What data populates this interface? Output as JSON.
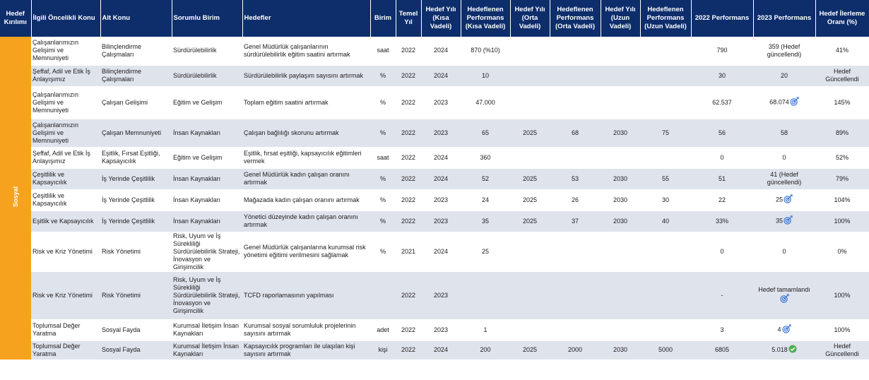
{
  "headers": {
    "kirilim": "Hedef Kırılımı",
    "oncelik": "İlgili Öncelikli Konu",
    "altkonu": "Alt Konu",
    "birim_sorumlu": "Sorumlu Birim",
    "hedefler": "Hedefler",
    "birim": "Birim",
    "temel": "Temel Yıl",
    "hy_kisa": "Hedef Yılı (Kısa Vadeli)",
    "hp_kisa": "Hedeflenen Performans (Kısa Vadeli)",
    "hy_orta": "Hedef Yılı (Orta Vadeli)",
    "hp_orta": "Hedeflenen Performans (Orta Vadeli)",
    "hy_uzun": "Hedef Yılı (Uzun Vadeli)",
    "hp_uzun": "Hedeflenen Performans (Uzun Vadeli)",
    "perf2022": "2022 Performans",
    "perf2023": "2023 Performans",
    "ilerleme": "Hedef İlerleme Oranı (%)"
  },
  "category": "Sosyal",
  "icon_colors": {
    "target": "#2f6fd6",
    "check": "#4caf50"
  },
  "rows": [
    {
      "oncelik": "Çalışanlarımızın Gelişimi ve Memnuniyeti",
      "altkonu": "Bilinçlendirme Çalışmaları",
      "sorumlu": "Sürdürülebilirlik",
      "hedef": "Genel Müdürlük çalışanlarının sürdürülebilirlik eğitim saatini artırmak",
      "birim": "saat",
      "temel": "2022",
      "hy_kisa": "2024",
      "hp_kisa": "870 (%10)",
      "hy_orta": "",
      "hp_orta": "",
      "hy_uzun": "",
      "hp_uzun": "",
      "p2022": "790",
      "p2023": "359 (Hedef güncellendi)",
      "icon": "none",
      "ilerleme": "41%"
    },
    {
      "oncelik": "Şeffaf, Adil ve Etik İş Anlayışımız",
      "altkonu": "Bilinçlendirme Çalışmaları",
      "sorumlu": "Sürdürülebilirlik",
      "hedef": "Sürdürülebilirlik paylaşım sayısını artırmak",
      "birim": "%",
      "temel": "2022",
      "hy_kisa": "2024",
      "hp_kisa": "10",
      "hy_orta": "",
      "hp_orta": "",
      "hy_uzun": "",
      "hp_uzun": "",
      "p2022": "30",
      "p2023": "20",
      "icon": "none",
      "ilerleme": "Hedef Güncellendi"
    },
    {
      "oncelik": "Çalışanlarımızın Gelişimi ve Memnuniyeti",
      "altkonu": "Çalışan Gelişimi",
      "sorumlu": "Eğitim ve Gelişim",
      "hedef": "Toplam eğitim saatini artırmak",
      "birim": "%",
      "temel": "2022",
      "hy_kisa": "2023",
      "hp_kisa": "47.000",
      "hy_orta": "",
      "hp_orta": "",
      "hy_uzun": "",
      "hp_uzun": "",
      "p2022": "62.537",
      "p2023": "68.074",
      "icon": "target",
      "ilerleme": "145%"
    },
    {
      "oncelik": "Çalışanlarımızın Gelişimi ve Memnuniyeti",
      "altkonu": "Çalışan Memnuniyeti",
      "sorumlu": "İnsan Kaynakları",
      "hedef": "Çalışan bağlılığı skorunu artırmak",
      "birim": "%",
      "temel": "2022",
      "hy_kisa": "2023",
      "hp_kisa": "65",
      "hy_orta": "2025",
      "hp_orta": "68",
      "hy_uzun": "2030",
      "hp_uzun": "75",
      "p2022": "56",
      "p2023": "58",
      "icon": "none",
      "ilerleme": "89%"
    },
    {
      "oncelik": "Şeffaf, Adil ve Etik İş Anlayışımız",
      "altkonu": "Eşitlik, Fırsat Eşitliği, Kapsayıcılık",
      "sorumlu": "Eğitim ve Gelişim",
      "hedef": "Eşitlik, fırsat eşitliği, kapsayıcılık eğitimleri vermek",
      "birim": "saat",
      "temel": "2022",
      "hy_kisa": "2024",
      "hp_kisa": "360",
      "hy_orta": "",
      "hp_orta": "",
      "hy_uzun": "",
      "hp_uzun": "",
      "p2022": "0",
      "p2023": "0",
      "icon": "none",
      "ilerleme": "52%"
    },
    {
      "oncelik": "Çeşitlilik ve Kapsayıcılık",
      "altkonu": "İş Yerinde Çeşitlilik",
      "sorumlu": "İnsan Kaynakları",
      "hedef": "Genel Müdürlük kadın çalışan oranını artırmak",
      "birim": "%",
      "temel": "2022",
      "hy_kisa": "2024",
      "hp_kisa": "52",
      "hy_orta": "2025",
      "hp_orta": "53",
      "hy_uzun": "2030",
      "hp_uzun": "55",
      "p2022": "51",
      "p2023": "41 (Hedef güncellendi)",
      "icon": "none",
      "ilerleme": "79%"
    },
    {
      "oncelik": "Çeşitlilik ve Kapsayıcılık",
      "altkonu": "İş Yerinde Çeşitlilik",
      "sorumlu": "İnsan Kaynakları",
      "hedef": "Mağazada kadın çalışan oranını artırmak",
      "birim": "%",
      "temel": "2022",
      "hy_kisa": "2023",
      "hp_kisa": "24",
      "hy_orta": "2025",
      "hp_orta": "26",
      "hy_uzun": "2030",
      "hp_uzun": "30",
      "p2022": "22",
      "p2023": "25",
      "icon": "target",
      "ilerleme": "104%"
    },
    {
      "oncelik": "Eşitlik ve Kapsayıcılık",
      "altkonu": "İş Yerinde Çeşitlilik",
      "sorumlu": "İnsan Kaynakları",
      "hedef": "Yönetici düzeyinde kadın çalışan oranını artırmak",
      "birim": "%",
      "temel": "2022",
      "hy_kisa": "2023",
      "hp_kisa": "35",
      "hy_orta": "2025",
      "hp_orta": "37",
      "hy_uzun": "2030",
      "hp_uzun": "40",
      "p2022": "33%",
      "p2023": "35",
      "icon": "target",
      "ilerleme": "100%"
    },
    {
      "oncelik": "Risk ve Kriz Yönetimi",
      "altkonu": "Risk Yönetimi",
      "sorumlu": "Risk, Uyum ve İş Sürekliliği Sürdürülebilirlik Strateji, İnovasyon ve Girişimcilik",
      "hedef": "Genel Müdürlük çalışanlarına kurumsal risk yönetimi eğitimi verilmesini sağlamak",
      "birim": "%",
      "temel": "2021",
      "hy_kisa": "2024",
      "hp_kisa": "25",
      "hy_orta": "",
      "hp_orta": "",
      "hy_uzun": "",
      "hp_uzun": "",
      "p2022": "0",
      "p2023": "0",
      "icon": "none",
      "ilerleme": "0%"
    },
    {
      "oncelik": "Risk ve Kriz Yönetimi",
      "altkonu": "Risk Yönetimi",
      "sorumlu": "Risk, Uyum ve İş Sürekliliği Sürdürülebilirlik Strateji, İnovasyon ve Girişimcilik",
      "hedef": "TCFD raporlamasının yapılması",
      "birim": "",
      "temel": "2022",
      "hy_kisa": "2023",
      "hp_kisa": "",
      "hy_orta": "",
      "hp_orta": "",
      "hy_uzun": "",
      "hp_uzun": "",
      "p2022": "-",
      "p2023": "Hedef tamamlandı",
      "icon": "target",
      "ilerleme": "100%"
    },
    {
      "oncelik": "Toplumsal Değer Yaratma",
      "altkonu": "Sosyal Fayda",
      "sorumlu": "Kurumsal İletişim İnsan Kaynakları",
      "hedef": "Kurumsal sosyal sorumluluk projelerinin sayısını artırmak",
      "birim": "adet",
      "temel": "2022",
      "hy_kisa": "2023",
      "hp_kisa": "1",
      "hy_orta": "",
      "hp_orta": "",
      "hy_uzun": "",
      "hp_uzun": "",
      "p2022": "3",
      "p2023": "4",
      "icon": "target",
      "ilerleme": "100%"
    },
    {
      "oncelik": "Toplumsal Değer Yaratma",
      "altkonu": "Sosyal Fayda",
      "sorumlu": "Kurumsal İletişim İnsan Kaynakları",
      "hedef": "Kapsayıcılık programları ile ulaşılan kişi sayısını artırmak",
      "birim": "kişi",
      "temel": "2022",
      "hy_kisa": "2024",
      "hp_kisa": "200",
      "hy_orta": "2025",
      "hp_orta": "2000",
      "hy_uzun": "2030",
      "hp_uzun": "5000",
      "p2022": "6805",
      "p2023": "5.018",
      "icon": "check",
      "ilerleme": "Hedef Güncellendi"
    }
  ]
}
